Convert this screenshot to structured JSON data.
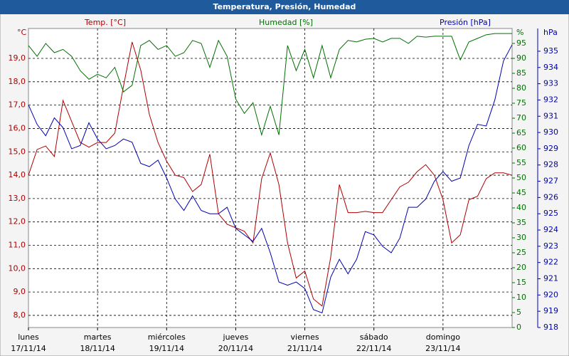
{
  "chart_data": {
    "type": "line",
    "title": "Temperatura, Presión, Humedad",
    "x": [
      0,
      0.125,
      0.25,
      0.375,
      0.5,
      0.625,
      0.75,
      0.875,
      1,
      1.125,
      1.25,
      1.375,
      1.5,
      1.625,
      1.75,
      1.875,
      2,
      2.125,
      2.25,
      2.375,
      2.5,
      2.625,
      2.75,
      2.875,
      3,
      3.125,
      3.25,
      3.375,
      3.5,
      3.625,
      3.75,
      3.875,
      4,
      4.125,
      4.25,
      4.375,
      4.5,
      4.625,
      4.75,
      4.875,
      5,
      5.125,
      5.25,
      5.375,
      5.5,
      5.625,
      5.75,
      5.875,
      6,
      6.125,
      6.25,
      6.375,
      6.5,
      6.625,
      6.75,
      6.875,
      7
    ],
    "xlim": [
      0,
      7
    ],
    "xticks": [
      {
        "value": 0,
        "label": "lunes"
      },
      {
        "value": 1,
        "label": "martes"
      },
      {
        "value": 2,
        "label": "miércoles"
      },
      {
        "value": 3,
        "label": "jueves"
      },
      {
        "value": 4,
        "label": "viernes"
      },
      {
        "value": 5,
        "label": "sábado"
      },
      {
        "value": 6,
        "label": "domingo"
      }
    ],
    "xtick_dates": [
      "17/11/14",
      "18/11/14",
      "19/11/14",
      "20/11/14",
      "21/11/14",
      "22/11/14",
      "23/11/14"
    ],
    "y_title": "Temp. [°C]",
    "y_unit": "°C",
    "ylim": [
      7.48,
      20.28
    ],
    "yticks": [
      {
        "value": 8,
        "label": "8,0"
      },
      {
        "value": 9,
        "label": "9,0"
      },
      {
        "value": 10,
        "label": "10,0"
      },
      {
        "value": 11,
        "label": "11,0"
      },
      {
        "value": 12,
        "label": "12,0"
      },
      {
        "value": 13,
        "label": "13,0"
      },
      {
        "value": 14,
        "label": "14,0"
      },
      {
        "value": 15,
        "label": "15,0"
      },
      {
        "value": 16,
        "label": "16,0"
      },
      {
        "value": 17,
        "label": "17,0"
      },
      {
        "value": 18,
        "label": "18,0"
      },
      {
        "value": 19,
        "label": "19,0"
      }
    ],
    "y2_title": "Humedad [%]",
    "y2_unit": "%",
    "y2lim": [
      0,
      100
    ],
    "y2ticks": [
      0,
      5,
      10,
      15,
      20,
      25,
      30,
      35,
      40,
      45,
      50,
      55,
      60,
      65,
      70,
      75,
      80,
      85,
      90,
      95
    ],
    "y3_title": "Presión [hPa]",
    "y3_unit": "hPa",
    "y3lim": [
      918,
      936.4
    ],
    "y3ticks": [
      918,
      919,
      920,
      921,
      922,
      923,
      924,
      925,
      926,
      927,
      928,
      929,
      930,
      931,
      932,
      933,
      934,
      935
    ],
    "grid": true,
    "series": [
      {
        "name": "Temp.",
        "color": "#b00000",
        "axis": "y",
        "values": [
          14.0,
          15.1,
          15.25,
          14.8,
          17.2,
          16.3,
          15.4,
          15.2,
          15.4,
          15.4,
          15.8,
          17.8,
          19.7,
          18.5,
          16.6,
          15.4,
          14.6,
          14.0,
          13.9,
          13.3,
          13.6,
          14.9,
          12.35,
          11.9,
          11.75,
          11.6,
          11.1,
          13.85,
          14.95,
          13.6,
          11.1,
          9.6,
          9.9,
          8.7,
          8.4,
          10.5,
          13.6,
          12.4,
          12.4,
          12.45,
          12.4,
          12.4,
          12.95,
          13.5,
          13.7,
          14.15,
          14.45,
          14.0,
          12.95,
          11.1,
          11.45,
          12.95,
          13.1,
          13.85,
          14.1,
          14.1,
          14.0
        ]
      },
      {
        "name": "Humedad",
        "color": "#007000",
        "axis": "y2",
        "values": [
          94.3,
          90.7,
          95,
          91.9,
          93,
          90.7,
          85.9,
          83,
          84.7,
          83.5,
          87,
          78.8,
          81,
          94.3,
          96,
          93,
          94.3,
          90.7,
          91.9,
          96,
          95,
          87,
          96,
          90.7,
          76.4,
          71.6,
          75.2,
          64.4,
          74,
          64.4,
          94.3,
          85.9,
          93,
          83.5,
          94.3,
          83.5,
          93,
          96,
          95.5,
          96.4,
          96.7,
          95.5,
          96.7,
          96.7,
          95,
          97.4,
          97.1,
          97.4,
          97.4,
          97.4,
          89.5,
          95.5,
          96.7,
          97.9,
          98.3,
          98.3,
          98.3
        ]
      },
      {
        "name": "Presión",
        "color": "#0000b0",
        "axis": "y3",
        "values": [
          931.7,
          930.5,
          929.8,
          930.9,
          930.3,
          929.0,
          929.2,
          930.6,
          929.6,
          929.0,
          929.2,
          929.6,
          929.4,
          928.1,
          927.9,
          928.3,
          927.2,
          925.9,
          925.2,
          926.1,
          925.2,
          925.0,
          925.0,
          925.4,
          924.1,
          923.7,
          923.3,
          924.1,
          922.6,
          920.8,
          920.6,
          920.8,
          920.4,
          919.1,
          918.9,
          921.1,
          922.2,
          921.3,
          922.2,
          923.9,
          923.7,
          923.0,
          922.6,
          923.5,
          925.4,
          925.4,
          925.9,
          927.0,
          927.6,
          927.0,
          927.2,
          929.2,
          930.5,
          930.4,
          932.0,
          934.4,
          935.4
        ]
      }
    ]
  }
}
